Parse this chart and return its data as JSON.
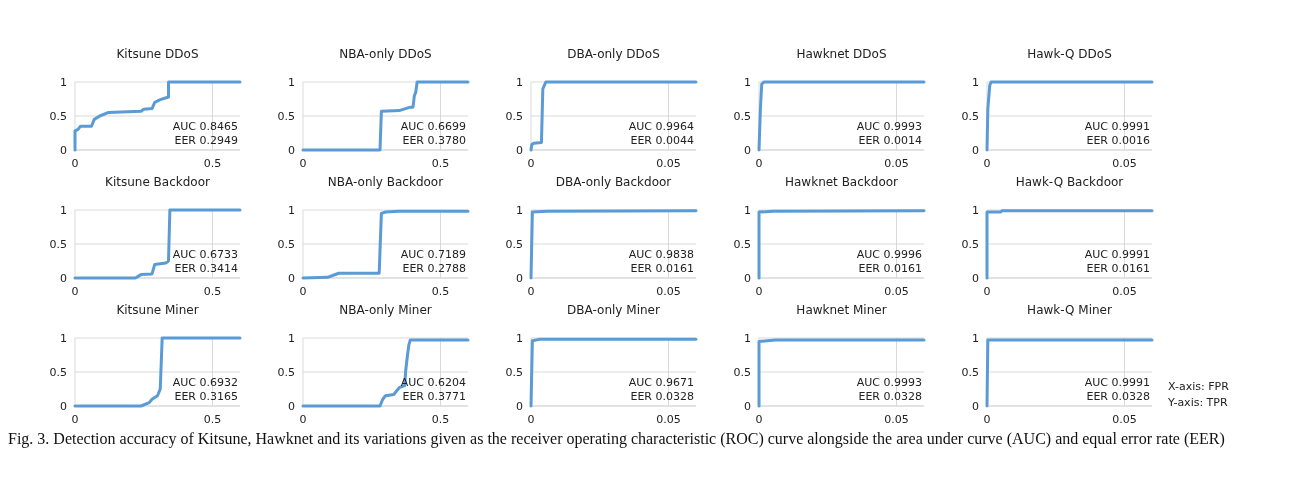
{
  "chart_data": [
    {
      "type": "line",
      "title": "Kitsune DDoS",
      "xlim": [
        0,
        0.6
      ],
      "xticks": [
        0,
        0.5
      ],
      "ylim": [
        0,
        1
      ],
      "yticks": [
        0,
        0.5,
        1
      ],
      "grid": true,
      "annotations": [
        "AUC 0.8465",
        "EER 0.2949"
      ],
      "series": [
        {
          "color": "#5b9bd5",
          "x": [
            0,
            0,
            0.01,
            0.02,
            0.06,
            0.07,
            0.09,
            0.12,
            0.24,
            0.25,
            0.28,
            0.29,
            0.31,
            0.34,
            0.34,
            0.6
          ],
          "values": [
            0,
            0.28,
            0.3,
            0.35,
            0.35,
            0.45,
            0.5,
            0.55,
            0.57,
            0.6,
            0.61,
            0.7,
            0.74,
            0.78,
            1,
            1
          ]
        }
      ]
    },
    {
      "type": "line",
      "title": "NBA-only DDoS",
      "xlim": [
        0,
        0.6
      ],
      "xticks": [
        0,
        0.5
      ],
      "ylim": [
        0,
        1
      ],
      "yticks": [
        0,
        0.5,
        1
      ],
      "grid": true,
      "annotations": [
        "AUC 0.6699",
        "EER 0.3780"
      ],
      "series": [
        {
          "color": "#5b9bd5",
          "x": [
            0,
            0.28,
            0.285,
            0.35,
            0.39,
            0.4,
            0.405,
            0.41,
            0.415,
            0.6
          ],
          "values": [
            0,
            0,
            0.57,
            0.58,
            0.63,
            0.63,
            0.8,
            0.85,
            1,
            1
          ]
        }
      ]
    },
    {
      "type": "line",
      "title": "DBA-only DDoS",
      "xlim": [
        0,
        0.06
      ],
      "xticks": [
        0,
        0.05
      ],
      "ylim": [
        0,
        1
      ],
      "yticks": [
        0,
        0.5,
        1
      ],
      "grid": true,
      "annotations": [
        "AUC 0.9964",
        "EER 0.0044"
      ],
      "series": [
        {
          "color": "#5b9bd5",
          "x": [
            0,
            0.0003,
            0.001,
            0.0038,
            0.0043,
            0.0054,
            0.06
          ],
          "values": [
            0,
            0.08,
            0.1,
            0.11,
            0.9,
            1,
            1
          ]
        }
      ]
    },
    {
      "type": "line",
      "title": "Hawknet DDoS",
      "xlim": [
        0,
        0.06
      ],
      "xticks": [
        0,
        0.05
      ],
      "ylim": [
        0,
        1
      ],
      "yticks": [
        0,
        0.5,
        1
      ],
      "grid": true,
      "annotations": [
        "AUC 0.9993",
        "EER 0.0014"
      ],
      "series": [
        {
          "color": "#5b9bd5",
          "x": [
            0,
            0.0005,
            0.001,
            0.0018,
            0.06
          ],
          "values": [
            0,
            0.6,
            0.97,
            1,
            1
          ]
        }
      ]
    },
    {
      "type": "line",
      "title": "Hawk-Q DDoS",
      "xlim": [
        0,
        0.06
      ],
      "xticks": [
        0,
        0.05
      ],
      "ylim": [
        0,
        1
      ],
      "yticks": [
        0,
        0.5,
        1
      ],
      "grid": true,
      "annotations": [
        "AUC 0.9991",
        "EER 0.0016"
      ],
      "series": [
        {
          "color": "#5b9bd5",
          "x": [
            0,
            0.0003,
            0.001,
            0.0015,
            0.06
          ],
          "values": [
            0,
            0.6,
            0.95,
            1,
            1
          ]
        }
      ]
    },
    {
      "type": "line",
      "title": "Kitsune Backdoor",
      "xlim": [
        0,
        0.6
      ],
      "xticks": [
        0,
        0.5
      ],
      "ylim": [
        0,
        1
      ],
      "yticks": [
        0,
        0.5,
        1
      ],
      "grid": true,
      "annotations": [
        "AUC 0.6733",
        "EER 0.3414"
      ],
      "series": [
        {
          "color": "#5b9bd5",
          "x": [
            0,
            0.22,
            0.24,
            0.28,
            0.29,
            0.33,
            0.34,
            0.345,
            0.6
          ],
          "values": [
            0,
            0,
            0.05,
            0.06,
            0.2,
            0.22,
            0.25,
            1,
            1
          ]
        }
      ]
    },
    {
      "type": "line",
      "title": "NBA-only Backdoor",
      "xlim": [
        0,
        0.6
      ],
      "xticks": [
        0,
        0.5
      ],
      "ylim": [
        0,
        1
      ],
      "yticks": [
        0,
        0.5,
        1
      ],
      "grid": true,
      "annotations": [
        "AUC 0.7189",
        "EER 0.2788"
      ],
      "series": [
        {
          "color": "#5b9bd5",
          "x": [
            0,
            0.09,
            0.11,
            0.13,
            0.277,
            0.285,
            0.3,
            0.35,
            0.6
          ],
          "values": [
            0,
            0.01,
            0.04,
            0.07,
            0.07,
            0.95,
            0.97,
            0.98,
            0.98
          ]
        }
      ]
    },
    {
      "type": "line",
      "title": "DBA-only Backdoor",
      "xlim": [
        0,
        0.06
      ],
      "xticks": [
        0,
        0.05
      ],
      "ylim": [
        0,
        1
      ],
      "yticks": [
        0,
        0.5,
        1
      ],
      "grid": true,
      "annotations": [
        "AUC 0.9838",
        "EER 0.0161"
      ],
      "series": [
        {
          "color": "#5b9bd5",
          "x": [
            0,
            0.0005,
            0.006,
            0.06
          ],
          "values": [
            0,
            0.97,
            0.98,
            0.99
          ]
        }
      ]
    },
    {
      "type": "line",
      "title": "Hawknet Backdoor",
      "xlim": [
        0,
        0.06
      ],
      "xticks": [
        0,
        0.05
      ],
      "ylim": [
        0,
        1
      ],
      "yticks": [
        0,
        0.5,
        1
      ],
      "grid": true,
      "annotations": [
        "AUC 0.9996",
        "EER 0.0161"
      ],
      "series": [
        {
          "color": "#5b9bd5",
          "x": [
            0,
            0,
            0.005,
            0.06
          ],
          "values": [
            0,
            0.97,
            0.98,
            0.99
          ]
        }
      ]
    },
    {
      "type": "line",
      "title": "Hawk-Q Backdoor",
      "xlim": [
        0,
        0.06
      ],
      "xticks": [
        0,
        0.05
      ],
      "ylim": [
        0,
        1
      ],
      "yticks": [
        0,
        0.5,
        1
      ],
      "grid": true,
      "annotations": [
        "AUC 0.9991",
        "EER 0.0161"
      ],
      "series": [
        {
          "color": "#5b9bd5",
          "x": [
            0,
            0,
            0.005,
            0.0055,
            0.06
          ],
          "values": [
            0,
            0.97,
            0.97,
            0.99,
            0.99
          ]
        }
      ]
    },
    {
      "type": "line",
      "title": "Kitsune Miner",
      "xlim": [
        0,
        0.6
      ],
      "xticks": [
        0,
        0.5
      ],
      "ylim": [
        0,
        1
      ],
      "yticks": [
        0,
        0.5,
        1
      ],
      "grid": true,
      "annotations": [
        "AUC 0.6932",
        "EER 0.3165"
      ],
      "series": [
        {
          "color": "#5b9bd5",
          "x": [
            0,
            0.24,
            0.27,
            0.28,
            0.3,
            0.31,
            0.317,
            0.6
          ],
          "values": [
            0,
            0,
            0.05,
            0.1,
            0.15,
            0.25,
            1,
            1
          ]
        }
      ]
    },
    {
      "type": "line",
      "title": "NBA-only Miner",
      "xlim": [
        0,
        0.6
      ],
      "xticks": [
        0,
        0.5
      ],
      "ylim": [
        0,
        1
      ],
      "yticks": [
        0,
        0.5,
        1
      ],
      "grid": true,
      "annotations": [
        "AUC 0.6204",
        "EER 0.3771"
      ],
      "series": [
        {
          "color": "#5b9bd5",
          "x": [
            0,
            0.28,
            0.29,
            0.3,
            0.33,
            0.35,
            0.37,
            0.373,
            0.38,
            0.385,
            0.39,
            0.6
          ],
          "values": [
            0,
            0,
            0.1,
            0.15,
            0.17,
            0.27,
            0.3,
            0.5,
            0.75,
            0.9,
            0.97,
            0.97
          ]
        }
      ]
    },
    {
      "type": "line",
      "title": "DBA-only Miner",
      "xlim": [
        0,
        0.06
      ],
      "xticks": [
        0,
        0.05
      ],
      "ylim": [
        0,
        1
      ],
      "yticks": [
        0,
        0.5,
        1
      ],
      "grid": true,
      "annotations": [
        "AUC 0.9671",
        "EER 0.0328"
      ],
      "series": [
        {
          "color": "#5b9bd5",
          "x": [
            0,
            0.0005,
            0.003,
            0.06
          ],
          "values": [
            0,
            0.96,
            0.98,
            0.98
          ]
        }
      ]
    },
    {
      "type": "line",
      "title": "Hawknet Miner",
      "xlim": [
        0,
        0.06
      ],
      "xticks": [
        0,
        0.05
      ],
      "ylim": [
        0,
        1
      ],
      "yticks": [
        0,
        0.5,
        1
      ],
      "grid": true,
      "annotations": [
        "AUC 0.9993",
        "EER 0.0328"
      ],
      "series": [
        {
          "color": "#5b9bd5",
          "x": [
            0,
            0,
            0.006,
            0.06
          ],
          "values": [
            0,
            0.95,
            0.97,
            0.97
          ]
        }
      ]
    },
    {
      "type": "line",
      "title": "Hawk-Q Miner",
      "xlim": [
        0,
        0.06
      ],
      "xticks": [
        0,
        0.05
      ],
      "ylim": [
        0,
        1
      ],
      "yticks": [
        0,
        0.5,
        1
      ],
      "grid": true,
      "annotations": [
        "AUC 0.9991",
        "EER 0.0328"
      ],
      "series": [
        {
          "color": "#5b9bd5",
          "x": [
            0,
            0.0003,
            0.06
          ],
          "values": [
            0,
            0.97,
            0.97
          ]
        }
      ]
    },
    {
      "type": "other",
      "title": "Fig. 3.  Detection accuracy of Kitsune, Hawknet and its variations given as the receiver operating characteristic (ROC) curve alongside the area under curve (AUC) and equal error rate (EER)",
      "annotations": [
        "X-axis: FPR",
        "Y-axis: TPR"
      ]
    }
  ]
}
